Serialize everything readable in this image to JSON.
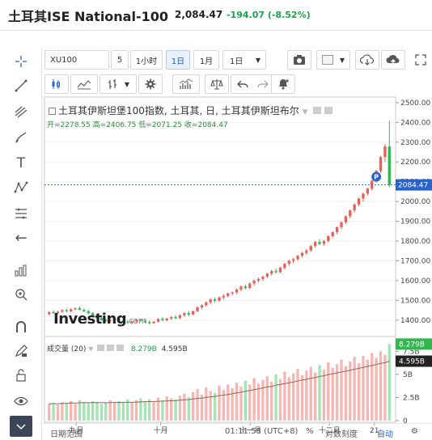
{
  "header": {
    "title": "土耳其ISE National-100",
    "price": "2,084.47",
    "change": "-194.07 (-8.52%)"
  },
  "toolbar": {
    "symbol": "XU100",
    "interval_num": "5",
    "interval_hour": "1小时",
    "interval_day": "1日",
    "interval_month": "1月",
    "range": "1日"
  },
  "legend": {
    "title": "土耳其伊斯坦堡100指数, 土耳其, 日, 土耳其伊斯坦布尔",
    "open_label": "开=",
    "open": "2278.55",
    "high_label": "高=",
    "high": "2406.75",
    "low_label": "低=",
    "low": "2071.25",
    "close_label": "收=",
    "close": "2084.47"
  },
  "volume_legend": {
    "label": "成交量 (20)",
    "v1": "8.279B",
    "v2": "4.595B"
  },
  "price_axis": [
    "2500.00",
    "2400.00",
    "2300.00",
    "2200.00",
    "2100.00",
    "2000.00",
    "1900.00",
    "1800.00",
    "1700.00",
    "1600.00",
    "1500.00",
    "1400.00"
  ],
  "price_tag": "2084.47",
  "marker": "P",
  "volume_axis": [
    "7.5B",
    "5B",
    "2.5B",
    "0"
  ],
  "volume_tags": [
    "8.279B",
    "4.595B"
  ],
  "time_axis": [
    "九月",
    "十月",
    "十一月",
    "十二月",
    "21"
  ],
  "logo": {
    "main": "Investing",
    "suffix": ".com"
  },
  "bottom": {
    "range_label": "日期范围",
    "time": "01:11:58 (UTC+8)",
    "percent": "%",
    "log": "对数刻度",
    "auto": "自动"
  },
  "colors": {
    "up": "#e8605a",
    "down": "#2fb84d",
    "vol_up": "#f6b7b3",
    "vol_down": "#a6e3b4",
    "line": "#2a62c9",
    "ma": "#8a6a5a"
  },
  "icons": [
    "crosshair-icon",
    "trendline-icon",
    "pitchfork-icon",
    "brush-icon",
    "text-icon",
    "pattern-icon",
    "fib-icon",
    "back-arrow-icon",
    "measure-icon",
    "zoom-icon",
    "magnet-icon",
    "lock-edit-icon",
    "lock-icon",
    "eye-icon",
    "trash-icon"
  ],
  "chart_data": {
    "type": "candlestick",
    "ylim": [
      1350,
      2520
    ],
    "bars": [
      [
        1430,
        1445,
        1425,
        1440
      ],
      [
        1440,
        1450,
        1432,
        1435
      ],
      [
        1435,
        1448,
        1428,
        1442
      ],
      [
        1442,
        1455,
        1438,
        1450
      ],
      [
        1450,
        1458,
        1440,
        1445
      ],
      [
        1445,
        1460,
        1440,
        1455
      ],
      [
        1455,
        1465,
        1448,
        1460
      ],
      [
        1460,
        1468,
        1450,
        1452
      ],
      [
        1452,
        1460,
        1440,
        1445
      ],
      [
        1445,
        1452,
        1430,
        1435
      ],
      [
        1435,
        1440,
        1415,
        1420
      ],
      [
        1420,
        1428,
        1405,
        1410
      ],
      [
        1410,
        1418,
        1398,
        1400
      ],
      [
        1400,
        1410,
        1390,
        1395
      ],
      [
        1395,
        1405,
        1385,
        1400
      ],
      [
        1400,
        1410,
        1392,
        1405
      ],
      [
        1405,
        1412,
        1395,
        1398
      ],
      [
        1398,
        1405,
        1388,
        1392
      ],
      [
        1392,
        1400,
        1382,
        1388
      ],
      [
        1388,
        1398,
        1380,
        1395
      ],
      [
        1395,
        1405,
        1388,
        1400
      ],
      [
        1400,
        1408,
        1392,
        1396
      ],
      [
        1396,
        1404,
        1385,
        1390
      ],
      [
        1390,
        1398,
        1378,
        1385
      ],
      [
        1385,
        1395,
        1380,
        1392
      ],
      [
        1392,
        1410,
        1388,
        1405
      ],
      [
        1405,
        1415,
        1395,
        1400
      ],
      [
        1400,
        1412,
        1395,
        1408
      ],
      [
        1408,
        1420,
        1400,
        1415
      ],
      [
        1415,
        1425,
        1405,
        1410
      ],
      [
        1410,
        1430,
        1405,
        1425
      ],
      [
        1425,
        1440,
        1415,
        1435
      ],
      [
        1435,
        1445,
        1420,
        1428
      ],
      [
        1428,
        1450,
        1425,
        1445
      ],
      [
        1445,
        1470,
        1440,
        1465
      ],
      [
        1465,
        1480,
        1455,
        1475
      ],
      [
        1475,
        1495,
        1468,
        1490
      ],
      [
        1490,
        1510,
        1480,
        1505
      ],
      [
        1505,
        1515,
        1490,
        1498
      ],
      [
        1498,
        1520,
        1492,
        1515
      ],
      [
        1515,
        1530,
        1505,
        1522
      ],
      [
        1522,
        1540,
        1515,
        1535
      ],
      [
        1535,
        1545,
        1525,
        1540
      ],
      [
        1540,
        1560,
        1532,
        1555
      ],
      [
        1555,
        1575,
        1545,
        1570
      ],
      [
        1570,
        1580,
        1555,
        1562
      ],
      [
        1562,
        1590,
        1558,
        1585
      ],
      [
        1585,
        1605,
        1575,
        1600
      ],
      [
        1600,
        1615,
        1590,
        1608
      ],
      [
        1608,
        1625,
        1598,
        1620
      ],
      [
        1620,
        1640,
        1612,
        1635
      ],
      [
        1635,
        1655,
        1625,
        1648
      ],
      [
        1648,
        1660,
        1635,
        1642
      ],
      [
        1642,
        1670,
        1638,
        1665
      ],
      [
        1665,
        1690,
        1655,
        1685
      ],
      [
        1685,
        1705,
        1675,
        1700
      ],
      [
        1700,
        1715,
        1688,
        1708
      ],
      [
        1708,
        1730,
        1700,
        1725
      ],
      [
        1725,
        1745,
        1715,
        1740
      ],
      [
        1740,
        1760,
        1730,
        1752
      ],
      [
        1752,
        1780,
        1745,
        1775
      ],
      [
        1775,
        1800,
        1765,
        1795
      ],
      [
        1795,
        1810,
        1780,
        1785
      ],
      [
        1785,
        1805,
        1775,
        1800
      ],
      [
        1800,
        1830,
        1792,
        1825
      ],
      [
        1825,
        1850,
        1815,
        1845
      ],
      [
        1845,
        1875,
        1835,
        1870
      ],
      [
        1870,
        1900,
        1860,
        1895
      ],
      [
        1895,
        1930,
        1885,
        1925
      ],
      [
        1925,
        1960,
        1915,
        1955
      ],
      [
        1955,
        1990,
        1945,
        1985
      ],
      [
        1985,
        2020,
        1975,
        2015
      ],
      [
        2015,
        2045,
        2000,
        2040
      ],
      [
        2040,
        2070,
        2030,
        2065
      ],
      [
        2065,
        2110,
        2055,
        2105
      ],
      [
        2105,
        2160,
        2095,
        2155
      ],
      [
        2155,
        2230,
        2145,
        2225
      ],
      [
        2225,
        2290,
        2200,
        2278
      ],
      [
        2278,
        2407,
        2071,
        2084
      ]
    ],
    "volume": [
      1.8,
      1.9,
      1.7,
      2.0,
      1.9,
      2.1,
      1.8,
      2.2,
      2.0,
      1.9,
      2.1,
      2.0,
      1.8,
      1.9,
      2.2,
      2.0,
      2.1,
      1.9,
      2.3,
      2.0,
      2.2,
      2.4,
      2.1,
      2.3,
      2.0,
      2.5,
      2.2,
      2.6,
      2.4,
      2.3,
      2.7,
      2.9,
      2.5,
      3.1,
      3.4,
      2.8,
      3.6,
      3.2,
      3.0,
      3.8,
      3.3,
      3.9,
      3.5,
      4.1,
      3.7,
      4.3,
      3.9,
      4.6,
      4.0,
      4.4,
      4.8,
      4.2,
      5.0,
      4.5,
      5.3,
      4.7,
      5.1,
      5.6,
      4.9,
      5.4,
      5.8,
      5.2,
      6.0,
      5.5,
      6.3,
      5.7,
      6.1,
      6.6,
      5.9,
      6.4,
      6.9,
      6.2,
      7.0,
      6.6,
      7.3,
      6.8,
      7.5,
      7.1,
      8.279
    ],
    "volume_ylim": [
      0,
      8.4
    ]
  }
}
